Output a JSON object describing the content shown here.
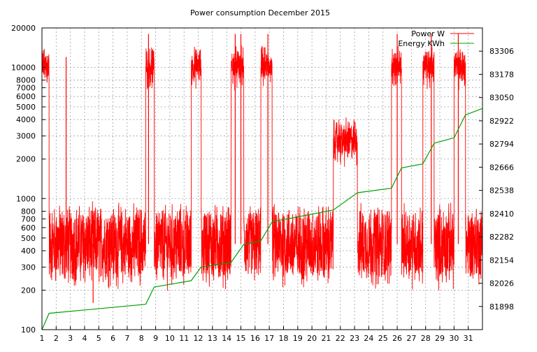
{
  "chart_data": {
    "type": "line",
    "title": "Power consumption December 2015",
    "xlabel": "",
    "ylabel": "",
    "y2label": "",
    "grid": true,
    "legend_position": "top-right",
    "x_ticks": [
      "1",
      "2",
      "3",
      "4",
      "5",
      "6",
      "7",
      "8",
      "9",
      "10",
      "11",
      "12",
      "13",
      "14",
      "15",
      "16",
      "17",
      "18",
      "19",
      "20",
      "21",
      "22",
      "23",
      "24",
      "25",
      "26",
      "27",
      "28",
      "29",
      "30",
      "31"
    ],
    "xlim": [
      1,
      32
    ],
    "y_scale": "log",
    "ylim": [
      100,
      20000
    ],
    "y_ticks": [
      100,
      200,
      300,
      400,
      500,
      600,
      700,
      800,
      1000,
      2000,
      3000,
      4000,
      5000,
      6000,
      7000,
      8000,
      10000,
      20000
    ],
    "y2lim": [
      81770,
      83434
    ],
    "y2_ticks": [
      81898,
      82026,
      82154,
      82282,
      82410,
      82538,
      82666,
      82794,
      82922,
      83050,
      83178,
      83306
    ],
    "colors": {
      "power": "#ff0000",
      "energy": "#00a000",
      "grid": "#a0a0a0",
      "axis": "#000000"
    },
    "series": [
      {
        "name": "Power W",
        "axis": "left",
        "color": "#ff0000",
        "baseline_w": 450,
        "segments": [
          {
            "x": [
              1.0,
              1.5
            ],
            "level_w": 10500
          },
          {
            "x": [
              8.3,
              8.9
            ],
            "level_w": 10500
          },
          {
            "x": [
              11.5,
              12.2
            ],
            "level_w": 10500
          },
          {
            "x": [
              14.3,
              15.2
            ],
            "level_w": 10500
          },
          {
            "x": [
              16.4,
              17.2
            ],
            "level_w": 10500
          },
          {
            "x": [
              21.5,
              23.2
            ],
            "level_w": 2800
          },
          {
            "x": [
              25.6,
              26.3
            ],
            "level_w": 10500
          },
          {
            "x": [
              27.8,
              28.6
            ],
            "level_w": 10500
          },
          {
            "x": [
              30.0,
              30.8
            ],
            "level_w": 10500
          }
        ],
        "spikes": [
          {
            "x": 2.7,
            "w": 12000
          },
          {
            "x": 4.6,
            "w": 160
          },
          {
            "x": 8.5,
            "w": 18000
          },
          {
            "x": 14.6,
            "w": 18000
          },
          {
            "x": 15.0,
            "w": 18000
          },
          {
            "x": 16.9,
            "w": 18000
          },
          {
            "x": 26.0,
            "w": 18000
          },
          {
            "x": 28.4,
            "w": 18000
          },
          {
            "x": 30.3,
            "w": 18000
          }
        ]
      },
      {
        "name": "Energy KWh",
        "axis": "right",
        "color": "#00a000",
        "x": [
          1.0,
          1.5,
          8.3,
          8.9,
          11.5,
          12.2,
          14.3,
          15.2,
          16.4,
          17.2,
          21.5,
          23.2,
          25.6,
          26.3,
          27.8,
          28.6,
          30.0,
          30.8,
          32.0
        ],
        "y": [
          81770,
          81860,
          81910,
          82005,
          82040,
          82115,
          82140,
          82240,
          82260,
          82365,
          82430,
          82525,
          82550,
          82662,
          82684,
          82798,
          82828,
          82954,
          82990
        ]
      }
    ]
  }
}
